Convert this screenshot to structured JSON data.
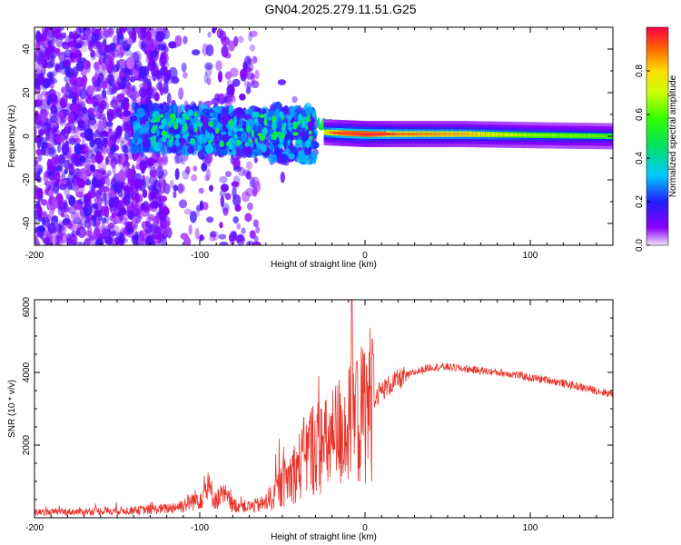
{
  "title": "GN04.2025.279.11.51.G25",
  "chart_data": [
    {
      "type": "heatmap",
      "title": "GN04.2025.279.11.51.G25",
      "xlabel": "Height of straight line (km)",
      "ylabel": "Frequency (Hz)",
      "xlim": [
        -200,
        150
      ],
      "ylim": [
        -50,
        50
      ],
      "x_ticks": [
        -200,
        -100,
        0,
        100
      ],
      "y_ticks": [
        -40,
        -20,
        0,
        20,
        40
      ],
      "x_tick_labels": [
        "-200",
        "-100",
        "0",
        "100"
      ],
      "y_tick_labels": [
        "-40",
        "-20",
        "0",
        "20",
        "40"
      ],
      "colorbar": {
        "label": "Normalized spectral amplitude",
        "range": [
          0,
          1
        ],
        "ticks": [
          0.0,
          0.2,
          0.4,
          0.6,
          0.8
        ],
        "tick_labels": [
          "0.0",
          "0.2",
          "0.4",
          "0.6",
          "0.8"
        ]
      },
      "ridge": [
        {
          "x": -135,
          "freq": 8,
          "amp": 0.25
        },
        {
          "x": -110,
          "freq": 6,
          "amp": 0.3
        },
        {
          "x": -95,
          "freq": 4,
          "amp": 0.3
        },
        {
          "x": -75,
          "freq": 3,
          "amp": 0.32
        },
        {
          "x": -60,
          "freq": 2,
          "amp": 0.35
        },
        {
          "x": -45,
          "freq": 3,
          "amp": 0.4
        },
        {
          "x": -30,
          "freq": 2,
          "amp": 0.55
        },
        {
          "x": -15,
          "freq": 1.5,
          "amp": 0.85
        },
        {
          "x": 0,
          "freq": 1,
          "amp": 0.9
        },
        {
          "x": 20,
          "freq": 1,
          "amp": 0.75
        },
        {
          "x": 60,
          "freq": 1,
          "amp": 0.7
        },
        {
          "x": 100,
          "freq": 0.5,
          "amp": 0.55
        },
        {
          "x": 150,
          "freq": 0,
          "amp": 0.5
        }
      ]
    },
    {
      "type": "line",
      "xlabel": "Height of straight line (km)",
      "ylabel": "SNR (10 * v/v)",
      "xlim": [
        -200,
        150
      ],
      "ylim": [
        0,
        6000
      ],
      "x_ticks": [
        -200,
        -100,
        0,
        100
      ],
      "y_ticks": [
        2000,
        4000,
        6000
      ],
      "x_tick_labels": [
        "-200",
        "-100",
        "0",
        "100"
      ],
      "y_tick_labels": [
        "2000",
        "4000",
        "6000"
      ],
      "color": "#e8352b",
      "series": [
        {
          "name": "SNR",
          "x": [
            -200,
            -180,
            -160,
            -140,
            -120,
            -110,
            -100,
            -95,
            -90,
            -85,
            -80,
            -70,
            -60,
            -50,
            -40,
            -35,
            -30,
            -25,
            -20,
            -15,
            -10,
            -5,
            0,
            5,
            10,
            20,
            30,
            40,
            50,
            60,
            70,
            80,
            90,
            100,
            110,
            120,
            130,
            140,
            150
          ],
          "y": [
            150,
            160,
            180,
            200,
            250,
            350,
            550,
            800,
            500,
            600,
            350,
            300,
            400,
            900,
            1400,
            1800,
            2000,
            1900,
            2100,
            2400,
            2500,
            2600,
            3000,
            3300,
            3500,
            3800,
            4000,
            4150,
            4150,
            4100,
            4050,
            4000,
            3950,
            3850,
            3800,
            3700,
            3600,
            3500,
            3400
          ]
        }
      ]
    }
  ]
}
